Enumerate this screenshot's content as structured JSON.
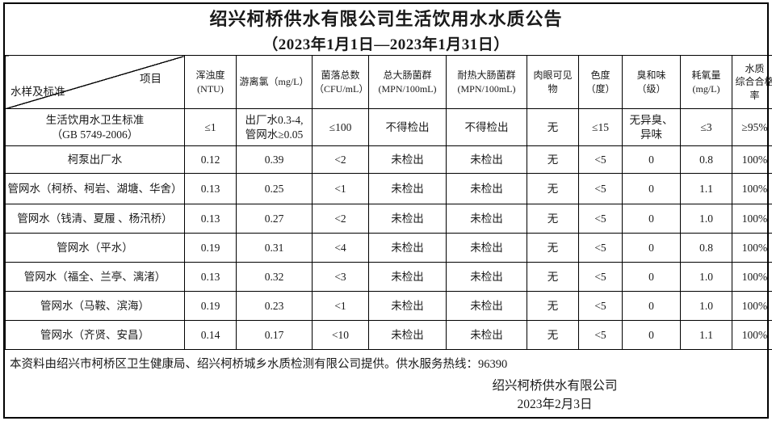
{
  "title": "绍兴柯桥供水有限公司生活饮用水水质公告",
  "subtitle": "（2023年1月1日—2023年1月31日）",
  "table": {
    "corner": {
      "top_right": "项目",
      "bottom_left": "水样及标准"
    },
    "columns": [
      "浑浊度\n(NTU)",
      "游离氯（mg/L）",
      "菌落总数\n（CFU/mL）",
      "总大肠菌群\n(MPN/100mL)",
      "耐热大肠菌群\n(MPN/100mL)",
      "肉眼可见物",
      "色度\n（度）",
      "臭和味\n（级）",
      "耗氧量\n(mg/L)",
      "水质\n综合合格率"
    ],
    "rows": [
      {
        "name": "生活饮用水卫生标准\n（GB 5749-2006）",
        "values": [
          "≤1",
          "出厂水0.3-4,\n管网水≥0.05",
          "≤100",
          "不得检出",
          "不得检出",
          "无",
          "≤15",
          "无异臭、\n异味",
          "≤3",
          "≥95%"
        ]
      },
      {
        "name": "柯泵出厂水",
        "values": [
          "0.12",
          "0.39",
          "<2",
          "未检出",
          "未检出",
          "无",
          "<5",
          "0",
          "0.8",
          "100%"
        ]
      },
      {
        "name": "管网水（柯桥、柯岩、湖塘、华舍）",
        "values": [
          "0.13",
          "0.25",
          "<1",
          "未检出",
          "未检出",
          "无",
          "<5",
          "0",
          "1.1",
          "100%"
        ]
      },
      {
        "name": "管网水（钱清、夏履 、杨汛桥）",
        "values": [
          "0.13",
          "0.27",
          "<2",
          "未检出",
          "未检出",
          "无",
          "<5",
          "0",
          "1.0",
          "100%"
        ]
      },
      {
        "name": "管网水（平水）",
        "values": [
          "0.19",
          "0.31",
          "<4",
          "未检出",
          "未检出",
          "无",
          "<5",
          "0",
          "0.8",
          "100%"
        ]
      },
      {
        "name": "管网水（福全、兰亭、漓渚）",
        "values": [
          "0.13",
          "0.32",
          "<3",
          "未检出",
          "未检出",
          "无",
          "<5",
          "0",
          "1.0",
          "100%"
        ]
      },
      {
        "name": "管网水（马鞍、滨海）",
        "values": [
          "0.19",
          "0.23",
          "<1",
          "未检出",
          "未检出",
          "无",
          "<5",
          "0",
          "1.0",
          "100%"
        ]
      },
      {
        "name": "管网水（齐贤、安昌）",
        "values": [
          "0.14",
          "0.17",
          "<10",
          "未检出",
          "未检出",
          "无",
          "<5",
          "0",
          "1.1",
          "100%"
        ]
      }
    ]
  },
  "footer": {
    "note": "本资料由绍兴市柯桥区卫生健康局、绍兴柯桥城乡水质检测有限公司提供。供水服务热线：96390",
    "company": "绍兴柯桥供水有限公司",
    "date": "2023年2月3日"
  }
}
